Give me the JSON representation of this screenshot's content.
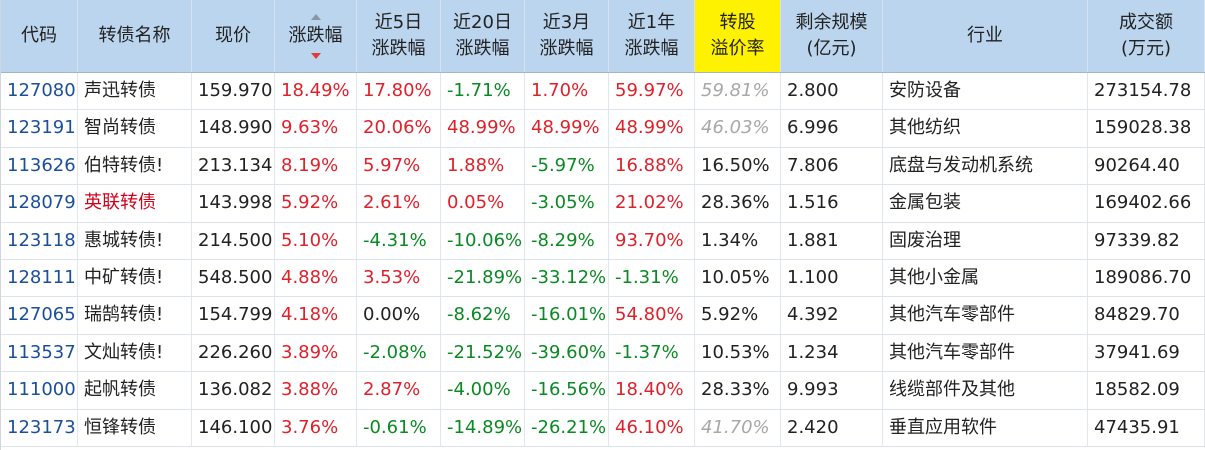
{
  "columns": [
    {
      "key": "code",
      "lines": [
        "代码"
      ],
      "w": 77
    },
    {
      "key": "name",
      "lines": [
        "转债名称"
      ],
      "w": 114
    },
    {
      "key": "price",
      "lines": [
        "现价"
      ],
      "w": 83
    },
    {
      "key": "chg",
      "lines": [
        "涨跌幅"
      ],
      "w": 82,
      "sortable": true
    },
    {
      "key": "chg5",
      "lines": [
        "近5日",
        "涨跌幅"
      ],
      "w": 84
    },
    {
      "key": "chg20",
      "lines": [
        "近20日",
        "涨跌幅"
      ],
      "w": 84
    },
    {
      "key": "chg3m",
      "lines": [
        "近3月",
        "涨跌幅"
      ],
      "w": 84
    },
    {
      "key": "chg1y",
      "lines": [
        "近1年",
        "涨跌幅"
      ],
      "w": 86
    },
    {
      "key": "premium",
      "lines": [
        "转股",
        "溢价率"
      ],
      "w": 86,
      "highlight": true
    },
    {
      "key": "scale",
      "lines": [
        "剩余规模",
        "(亿元)"
      ],
      "w": 102
    },
    {
      "key": "industry",
      "lines": [
        "行业"
      ],
      "w": 205
    },
    {
      "key": "volume",
      "lines": [
        "成交额",
        "(万元)"
      ],
      "w": 117
    }
  ],
  "rows": [
    {
      "code": "127080",
      "name": "声迅转债",
      "name_red": false,
      "price": "159.970",
      "chg": "18.49%",
      "chg5": "17.80%",
      "chg20": "-1.71%",
      "chg3m": "1.70%",
      "chg1y": "59.97%",
      "premium": "59.81%",
      "premium_grey": true,
      "scale": "2.800",
      "industry": "安防设备",
      "volume": "273154.78"
    },
    {
      "code": "123191",
      "name": "智尚转债",
      "name_red": false,
      "price": "148.990",
      "chg": "9.63%",
      "chg5": "20.06%",
      "chg20": "48.99%",
      "chg3m": "48.99%",
      "chg1y": "48.99%",
      "premium": "46.03%",
      "premium_grey": true,
      "scale": "6.996",
      "industry": "其他纺织",
      "volume": "159028.38"
    },
    {
      "code": "113626",
      "name": "伯特转债!",
      "name_red": false,
      "price": "213.134",
      "chg": "8.19%",
      "chg5": "5.97%",
      "chg20": "1.88%",
      "chg3m": "-5.97%",
      "chg1y": "16.88%",
      "premium": "16.50%",
      "premium_grey": false,
      "scale": "7.806",
      "industry": "底盘与发动机系统",
      "volume": "90264.40"
    },
    {
      "code": "128079",
      "name": "英联转债",
      "name_red": true,
      "price": "143.998",
      "chg": "5.92%",
      "chg5": "2.61%",
      "chg20": "0.05%",
      "chg3m": "-3.05%",
      "chg1y": "21.02%",
      "premium": "28.36%",
      "premium_grey": false,
      "scale": "1.516",
      "industry": "金属包装",
      "volume": "169402.66"
    },
    {
      "code": "123118",
      "name": "惠城转债!",
      "name_red": false,
      "price": "214.500",
      "chg": "5.10%",
      "chg5": "-4.31%",
      "chg20": "-10.06%",
      "chg3m": "-8.29%",
      "chg1y": "93.70%",
      "premium": "1.34%",
      "premium_grey": false,
      "scale": "1.881",
      "industry": "固废治理",
      "volume": "97339.82"
    },
    {
      "code": "128111",
      "name": "中矿转债!",
      "name_red": false,
      "price": "548.500",
      "chg": "4.88%",
      "chg5": "3.53%",
      "chg20": "-21.89%",
      "chg3m": "-33.12%",
      "chg1y": "-1.31%",
      "premium": "10.05%",
      "premium_grey": false,
      "scale": "1.100",
      "industry": "其他小金属",
      "volume": "189086.70"
    },
    {
      "code": "127065",
      "name": "瑞鹄转债!",
      "name_red": false,
      "price": "154.799",
      "chg": "4.18%",
      "chg5": "0.00%",
      "chg20": "-8.62%",
      "chg3m": "-16.01%",
      "chg1y": "54.80%",
      "premium": "5.92%",
      "premium_grey": false,
      "scale": "4.392",
      "industry": "其他汽车零部件",
      "volume": "84829.70"
    },
    {
      "code": "113537",
      "name": "文灿转债!",
      "name_red": false,
      "price": "226.260",
      "chg": "3.89%",
      "chg5": "-2.08%",
      "chg20": "-21.52%",
      "chg3m": "-39.60%",
      "chg1y": "-1.37%",
      "premium": "10.53%",
      "premium_grey": false,
      "scale": "1.234",
      "industry": "其他汽车零部件",
      "volume": "37941.69"
    },
    {
      "code": "111000",
      "name": "起帆转债",
      "name_red": false,
      "price": "136.082",
      "chg": "3.88%",
      "chg5": "2.87%",
      "chg20": "-4.00%",
      "chg3m": "-16.56%",
      "chg1y": "18.40%",
      "premium": "28.33%",
      "premium_grey": false,
      "scale": "9.993",
      "industry": "线缆部件及其他",
      "volume": "18582.09"
    },
    {
      "code": "123173",
      "name": "恒锋转债",
      "name_red": false,
      "price": "146.100",
      "chg": "3.76%",
      "chg5": "-0.61%",
      "chg20": "-14.89%",
      "chg3m": "-26.21%",
      "chg1y": "46.10%",
      "premium": "41.70%",
      "premium_grey": true,
      "scale": "2.420",
      "industry": "垂直应用软件",
      "volume": "47435.91"
    }
  ]
}
